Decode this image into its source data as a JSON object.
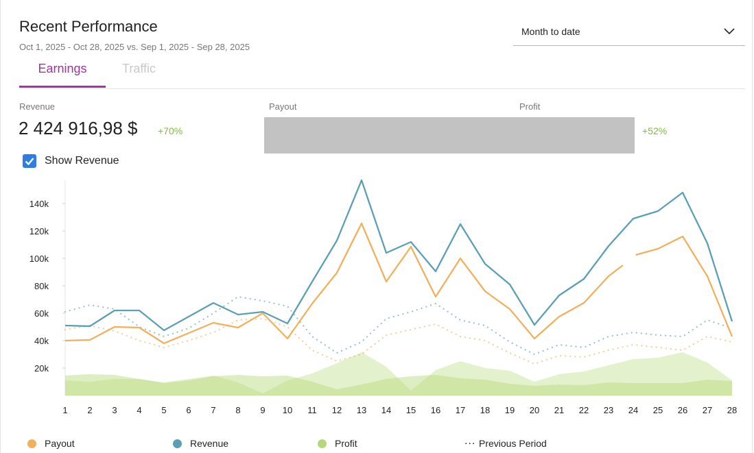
{
  "header": {
    "title": "Recent Performance",
    "subtitle": "Oct 1, 2025 - Oct 28, 2025 vs. Sep 1, 2025 - Sep 28, 2025",
    "period_select": "Month to date"
  },
  "tabs": [
    {
      "label": "Earnings",
      "active": true
    },
    {
      "label": "Traffic",
      "active": false
    }
  ],
  "metrics": {
    "revenue": {
      "label": "Revenue",
      "value": "2 424 916,98 $",
      "delta": "+70%"
    },
    "payout": {
      "label": "Payout"
    },
    "profit": {
      "label": "Profit",
      "delta": "+52%"
    }
  },
  "show_revenue": {
    "label": "Show Revenue",
    "checked": true
  },
  "colors": {
    "accent": "#a72fa6",
    "payout": "#f0b05c",
    "revenue": "#5a9fb5",
    "profit": "#b5d97a",
    "delta": "#7bbf3a",
    "checkbox": "#2f7de1"
  },
  "icons": {
    "select": "chevron-down-icon",
    "checkbox": "checkmark-icon"
  },
  "legend": [
    {
      "label": "Payout",
      "kind": "dot",
      "color": "#f0b05c"
    },
    {
      "label": "Revenue",
      "kind": "dot",
      "color": "#5a9fb5"
    },
    {
      "label": "Profit",
      "kind": "dot",
      "color": "#b5d97a"
    },
    {
      "label": "Previous Period",
      "kind": "dots",
      "glyph": "..."
    }
  ],
  "chart_data": {
    "type": "line",
    "title": "",
    "xlabel": "",
    "ylabel": "",
    "ylim": [
      0,
      157000
    ],
    "yticks": [
      20000,
      40000,
      60000,
      80000,
      100000,
      120000,
      140000
    ],
    "ytick_labels": [
      "20k",
      "40k",
      "60k",
      "80k",
      "100k",
      "120k",
      "140k"
    ],
    "categories": [
      "1",
      "2",
      "3",
      "4",
      "5",
      "6",
      "7",
      "8",
      "9",
      "10",
      "11",
      "12",
      "13",
      "14",
      "15",
      "16",
      "17",
      "18",
      "19",
      "20",
      "21",
      "22",
      "23",
      "24",
      "25",
      "26",
      "27",
      "28"
    ],
    "series": [
      {
        "name": "Revenue",
        "style": "line",
        "color": "#5a9fb5",
        "values": [
          51000,
          50500,
          62000,
          62000,
          47500,
          57500,
          67500,
          59000,
          61000,
          52500,
          83000,
          113000,
          157000,
          104000,
          112000,
          90500,
          125000,
          96000,
          81000,
          51500,
          73000,
          85000,
          109000,
          129000,
          134500,
          148000,
          111000,
          54000
        ]
      },
      {
        "name": "Payout",
        "style": "line",
        "color": "#f0b05c",
        "values": [
          40000,
          40500,
          50000,
          49500,
          38000,
          45500,
          53000,
          49500,
          60000,
          41500,
          67000,
          89500,
          125500,
          83000,
          108500,
          72000,
          100000,
          76000,
          63000,
          41500,
          57500,
          67500,
          87000,
          null,
          107000,
          116000,
          87000,
          43000
        ],
        "segment_breaks": [
          [
            23,
            95000
          ],
          [
            24,
            102500
          ]
        ]
      },
      {
        "name": "Revenue (Previous Period)",
        "style": "dotted",
        "color": "#5a9fb5",
        "values": [
          61000,
          66000,
          63000,
          50000,
          43000,
          49000,
          60000,
          72000,
          69000,
          65000,
          43000,
          31000,
          39000,
          56000,
          61000,
          67000,
          55000,
          51000,
          39000,
          30000,
          37000,
          35000,
          43000,
          46000,
          44000,
          43000,
          55000,
          49000
        ]
      },
      {
        "name": "Payout (Previous Period)",
        "style": "dotted",
        "color": "#f0b05c",
        "values": [
          48000,
          51000,
          47000,
          40000,
          35000,
          40000,
          46000,
          55000,
          56000,
          50000,
          33000,
          25000,
          30000,
          44000,
          48000,
          52000,
          43000,
          40000,
          31000,
          23000,
          29000,
          28000,
          33000,
          37000,
          35000,
          33000,
          43000,
          39000
        ]
      },
      {
        "name": "Profit",
        "style": "area",
        "color": "#b5d97a",
        "values": [
          11000,
          10000,
          12000,
          12000,
          9500,
          12000,
          14500,
          9500,
          1500,
          11000,
          16000,
          23500,
          31500,
          21000,
          3500,
          18500,
          25000,
          20000,
          18000,
          10000,
          15500,
          17500,
          22000,
          26500,
          27500,
          31500,
          24000,
          11000
        ]
      },
      {
        "name": "Profit (Previous Period)",
        "style": "area-light",
        "color": "#b5d97a",
        "values": [
          14500,
          15500,
          15000,
          12000,
          9000,
          11000,
          14000,
          15000,
          14000,
          14500,
          10000,
          4500,
          8000,
          12000,
          14000,
          15000,
          12500,
          11500,
          8500,
          7000,
          8000,
          7500,
          9500,
          9000,
          9000,
          9000,
          11500,
          10500
        ]
      }
    ]
  }
}
